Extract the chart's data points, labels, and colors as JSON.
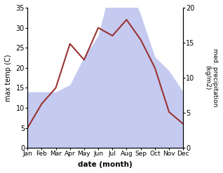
{
  "months": [
    "Jan",
    "Feb",
    "Mar",
    "Apr",
    "May",
    "Jun",
    "Jul",
    "Aug",
    "Sep",
    "Oct",
    "Nov",
    "Dec"
  ],
  "temp": [
    5,
    11,
    15,
    26,
    22,
    30,
    28,
    32,
    27,
    20,
    9,
    6
  ],
  "precip": [
    8,
    8,
    8,
    9,
    13,
    16,
    24,
    24,
    19,
    13,
    11,
    8
  ],
  "temp_color": "#993333",
  "precip_color_fill": "#c5caf0",
  "ylabel_left": "max temp (C)",
  "ylabel_right": "med. precipitation\n(kg/m2)",
  "xlabel": "date (month)",
  "ylim_left": [
    0,
    35
  ],
  "ylim_right": [
    0,
    20
  ],
  "yticks_left": [
    0,
    5,
    10,
    15,
    20,
    25,
    30,
    35
  ],
  "yticks_right": [
    0,
    5,
    10,
    15,
    20
  ]
}
